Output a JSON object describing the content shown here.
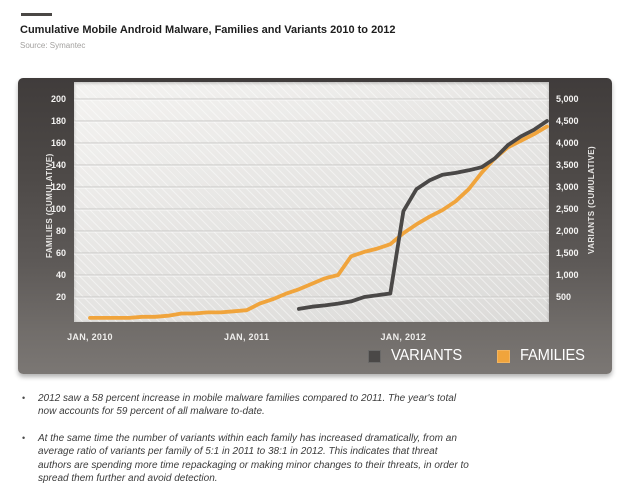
{
  "header": {
    "title": "Cumulative Mobile Android Malware, Families and Variants 2010 to 2012",
    "source": "Source: Symantec"
  },
  "chart_data": {
    "type": "line",
    "title": "Cumulative Mobile Android Malware, Families and Variants 2010 to 2012",
    "x_interval": "monthly",
    "x_start": "JAN, 2010",
    "x_end": "DEC, 2012",
    "months_total": 36,
    "x_tick_labels": [
      "JAN, 2010",
      "JAN, 2011",
      "JAN, 2012"
    ],
    "x_tick_months": [
      0,
      12,
      24
    ],
    "left_axis": {
      "title": "FAMILIES  (CUMULATIVE)",
      "min": 0,
      "max": 200,
      "tick_step": 20,
      "ticks": [
        20,
        40,
        60,
        80,
        100,
        120,
        140,
        160,
        180,
        200
      ]
    },
    "right_axis": {
      "title": "VARIANTS  (CUMULATIVE)",
      "min": 0,
      "max": 5000,
      "tick_step": 500,
      "ticks": [
        "500",
        "1,000",
        "1,500",
        "2,000",
        "2,500",
        "3,000",
        "3,500",
        "4,000",
        "4,500",
        "5,000"
      ]
    },
    "grid": "horizontal",
    "legend_position": "bottom-right",
    "series": [
      {
        "name": "FAMILIES",
        "axis": "left",
        "color": "#f0a43c",
        "start_month": 0,
        "values": [
          1,
          1,
          1,
          1,
          2,
          2,
          3,
          5,
          5,
          6,
          6,
          7,
          8,
          14,
          18,
          23,
          27,
          32,
          37,
          40,
          57,
          61,
          64,
          68,
          78,
          86,
          93,
          99,
          107,
          118,
          133,
          146,
          156,
          162,
          168,
          175
        ]
      },
      {
        "name": "VARIANTS",
        "axis": "right",
        "color": "#4a4847",
        "start_month": 16,
        "values": [
          230,
          280,
          310,
          350,
          400,
          500,
          540,
          580,
          2450,
          2950,
          3150,
          3280,
          3320,
          3380,
          3450,
          3650,
          3950,
          4150,
          4300,
          4500
        ]
      }
    ],
    "legend": [
      {
        "label": "VARIANTS",
        "color": "#4a4847"
      },
      {
        "label": "FAMILIES",
        "color": "#f0a43c"
      }
    ]
  },
  "notes_bullet": "•",
  "notes": [
    "2012 saw a 58 percent increase in mobile malware families compared to 2011. The year's total now accounts for 59 percent of all malware to-date.",
    "At the same time the number of variants within each family has increased dramatically, from an average ratio of variants per family of 5:1 in 2011 to 38:1 in 2012. This indicates that threat authors are spending more time repackaging or making minor changes to their threats, in order to spread them further and avoid detection."
  ]
}
